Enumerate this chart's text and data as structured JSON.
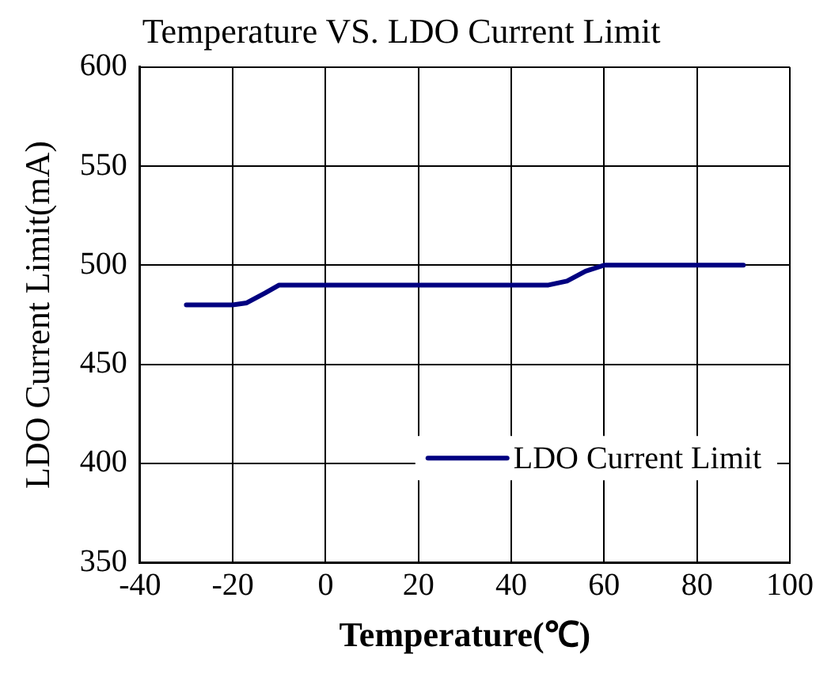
{
  "chart_data": {
    "type": "line",
    "title": "Temperature VS. LDO Current Limit",
    "xlabel": "Temperature(℃)",
    "ylabel": "LDO Current Limit(mA)",
    "series": [
      {
        "name": "LDO Current Limit",
        "color": "#000080",
        "x": [
          -30,
          -20,
          -17,
          -13,
          -10,
          0,
          20,
          40,
          48,
          52,
          56,
          60,
          70,
          80,
          90
        ],
        "values": [
          480,
          480,
          481,
          486,
          490,
          490,
          490,
          490,
          490,
          492,
          497,
          500,
          500,
          500,
          500
        ]
      }
    ],
    "xlim": [
      -40,
      100
    ],
    "xticks": [
      -40,
      -20,
      0,
      20,
      40,
      60,
      80,
      100
    ],
    "ylim": [
      350,
      600
    ],
    "yticks": [
      350,
      400,
      450,
      500,
      550,
      600
    ],
    "grid": true,
    "legend": "bottom right",
    "marker": "none",
    "line_style": "solid"
  }
}
